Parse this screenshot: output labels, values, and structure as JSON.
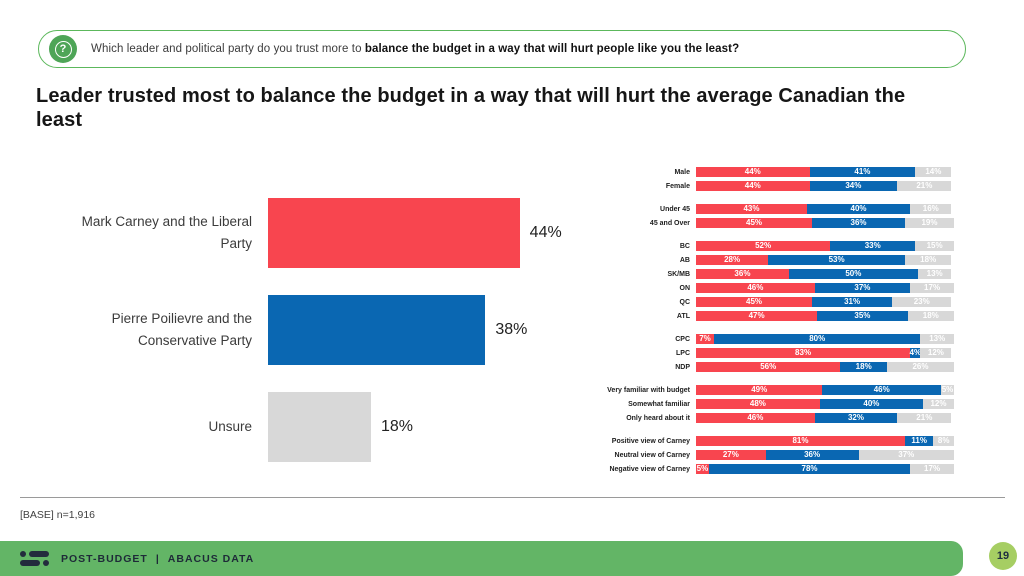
{
  "question": {
    "prefix": "Which leader and political party do you trust more to ",
    "bold": "balance the budget in a way that will hurt people like you the least?"
  },
  "title": "Leader trusted most to balance the budget in a way that will hurt the average Canadian the least",
  "base_note": "[BASE] n=1,916",
  "footer": {
    "report": "POST-BUDGET",
    "separator": "|",
    "brand": "ABACUS DATA",
    "page_number": "19"
  },
  "colors": {
    "liberal_red": "#F8454F",
    "conservative_blue": "#0A67B2",
    "unsure_gray": "#D8D8D8",
    "footer_green": "#63B566",
    "page_circle_green": "#A6CE63",
    "question_border_green": "#5CB85C",
    "icon_green": "#4EA557"
  },
  "chart_data": [
    {
      "type": "bar",
      "orientation": "horizontal",
      "title": "Leader trusted most to balance the budget in a way that will hurt the average Canadian the least",
      "categories": [
        "Mark Carney and the Liberal Party",
        "Pierre Poilievre and the Conservative Party",
        "Unsure"
      ],
      "values": [
        44,
        38,
        18
      ],
      "unit": "%",
      "colors": [
        "#F8454F",
        "#0A67B2",
        "#D8D8D8"
      ],
      "xlim": [
        0,
        50
      ],
      "grid": false,
      "legend": false,
      "data_labels": "outside-right"
    },
    {
      "type": "bar",
      "stacked": true,
      "orientation": "horizontal",
      "unit": "%",
      "series": [
        "Mark Carney and the Liberal Party",
        "Pierre Poilievre and the Conservative Party",
        "Unsure"
      ],
      "series_colors": [
        "#F8454F",
        "#0A67B2",
        "#D8D8D8"
      ],
      "xlim": [
        0,
        100
      ],
      "grid": false,
      "legend": false,
      "data_labels": "inside-white",
      "groups": [
        {
          "rows": [
            {
              "label": "Male",
              "values": [
                44,
                41,
                14
              ]
            },
            {
              "label": "Female",
              "values": [
                44,
                34,
                21
              ]
            }
          ]
        },
        {
          "rows": [
            {
              "label": "Under 45",
              "values": [
                43,
                40,
                16
              ]
            },
            {
              "label": "45 and Over",
              "values": [
                45,
                36,
                19
              ]
            }
          ]
        },
        {
          "rows": [
            {
              "label": "BC",
              "values": [
                52,
                33,
                15
              ]
            },
            {
              "label": "AB",
              "values": [
                28,
                53,
                18
              ]
            },
            {
              "label": "SK/MB",
              "values": [
                36,
                50,
                13
              ]
            },
            {
              "label": "ON",
              "values": [
                46,
                37,
                17
              ]
            },
            {
              "label": "QC",
              "values": [
                45,
                31,
                23
              ]
            },
            {
              "label": "ATL",
              "values": [
                47,
                35,
                18
              ]
            }
          ]
        },
        {
          "rows": [
            {
              "label": "CPC",
              "values": [
                7,
                80,
                13
              ]
            },
            {
              "label": "LPC",
              "values": [
                83,
                4,
                12
              ]
            },
            {
              "label": "NDP",
              "values": [
                56,
                18,
                26
              ]
            }
          ]
        },
        {
          "rows": [
            {
              "label": "Very familiar with budget",
              "values": [
                49,
                46,
                5
              ]
            },
            {
              "label": "Somewhat familiar",
              "values": [
                48,
                40,
                12
              ]
            },
            {
              "label": "Only heard about it",
              "values": [
                46,
                32,
                21
              ]
            }
          ]
        },
        {
          "rows": [
            {
              "label": "Positive view of Carney",
              "values": [
                81,
                11,
                8
              ]
            },
            {
              "label": "Neutral view of Carney",
              "values": [
                27,
                36,
                37
              ]
            },
            {
              "label": "Negative view of Carney",
              "values": [
                5,
                78,
                17
              ]
            }
          ]
        }
      ]
    }
  ]
}
